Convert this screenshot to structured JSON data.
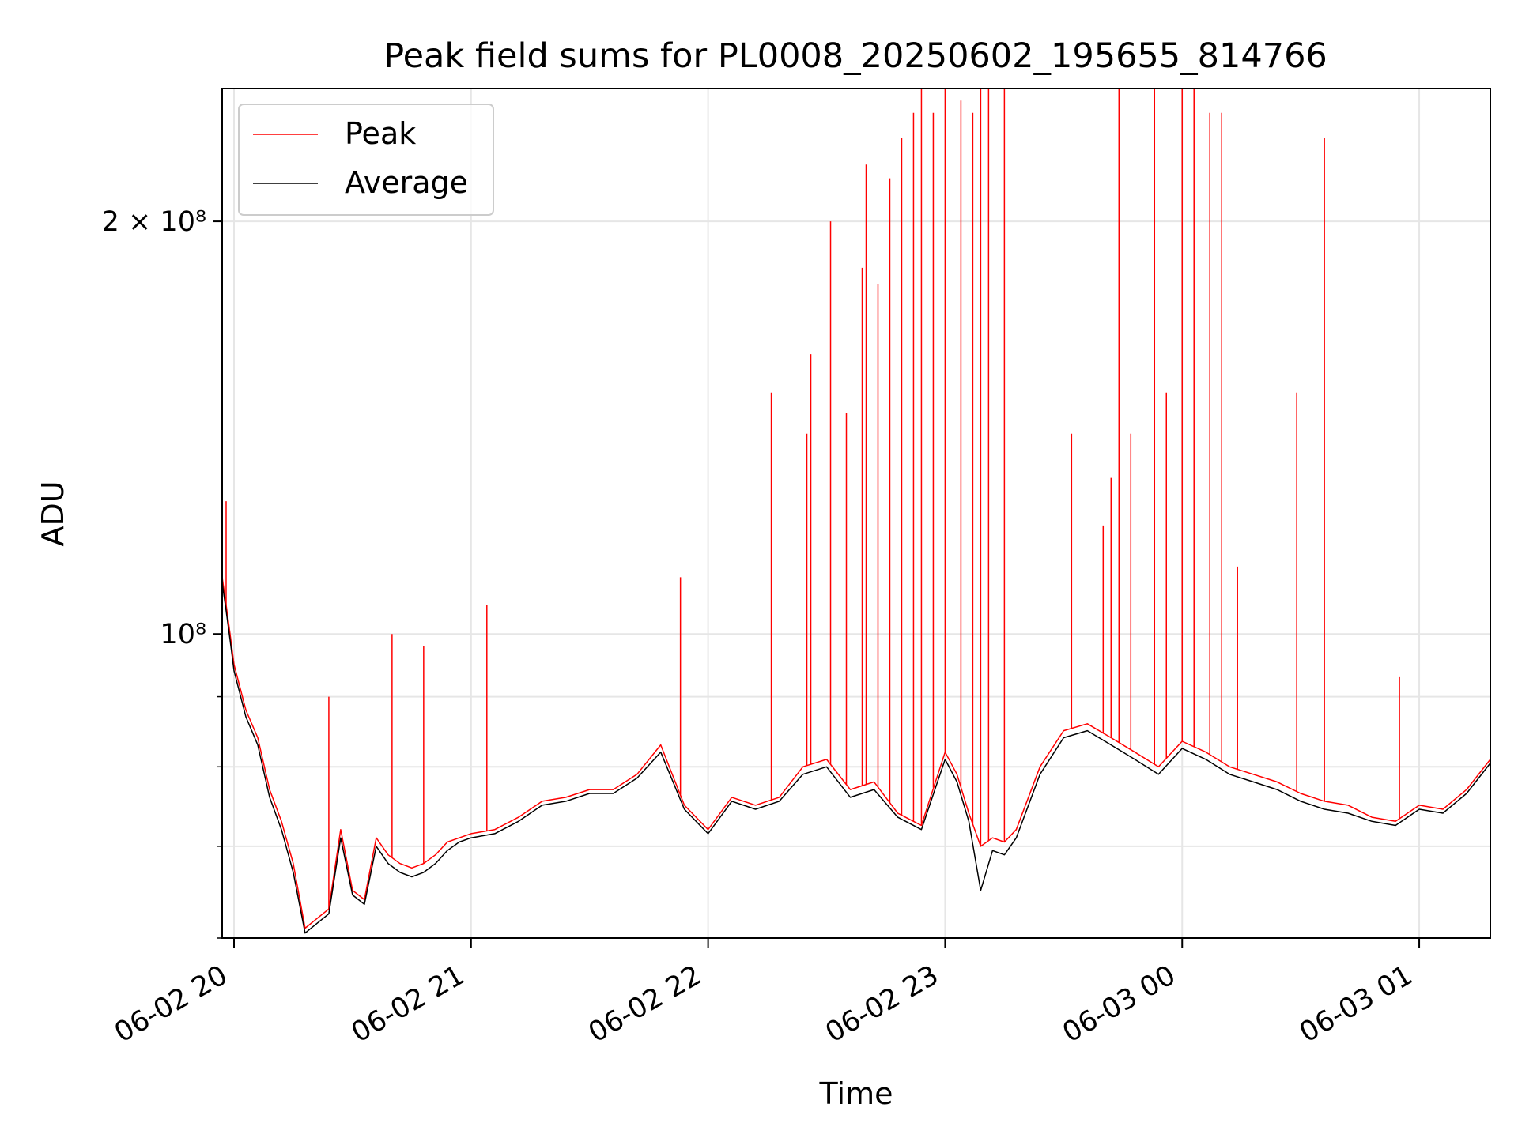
{
  "chart_data": {
    "type": "line",
    "title": "Peak field sums for PL0008_20250602_195655_814766",
    "xlabel": "Time",
    "ylabel": "ADU",
    "yscale": "log",
    "xlim": [
      "2025-06-02 19:57",
      "2025-06-03 01:18"
    ],
    "ylim": [
      60000000,
      250000000
    ],
    "grid": true,
    "legend_position": "top-left",
    "x_ticks": [
      {
        "time": "2025-06-02 20:00",
        "label": "06-02 20"
      },
      {
        "time": "2025-06-02 21:00",
        "label": "06-02 21"
      },
      {
        "time": "2025-06-02 22:00",
        "label": "06-02 22"
      },
      {
        "time": "2025-06-02 23:00",
        "label": "06-02 23"
      },
      {
        "time": "2025-06-03 00:00",
        "label": "06-03 00"
      },
      {
        "time": "2025-06-03 01:00",
        "label": "06-03 01"
      }
    ],
    "y_ticks": [
      {
        "value": 100000000,
        "label": "10⁸"
      },
      {
        "value": 200000000,
        "label": "2 × 10⁸"
      }
    ],
    "y_minor_ticks": [
      60000000,
      70000000,
      80000000,
      90000000
    ],
    "series": [
      {
        "name": "Peak",
        "color": "#ff0000",
        "points": [
          [
            "2025-06-02 19:57",
            110000000
          ],
          [
            "2025-06-02 19:58",
            105000000
          ],
          [
            "2025-06-02 19:59",
            100000000
          ],
          [
            "2025-06-02 20:00",
            95000000
          ],
          [
            "2025-06-02 20:03",
            88000000
          ],
          [
            "2025-06-02 20:06",
            84000000
          ],
          [
            "2025-06-02 20:09",
            77000000
          ],
          [
            "2025-06-02 20:12",
            73000000
          ],
          [
            "2025-06-02 20:15",
            68000000
          ],
          [
            "2025-06-02 20:18",
            61000000
          ],
          [
            "2025-06-02 20:21",
            62000000
          ],
          [
            "2025-06-02 20:24",
            63000000
          ],
          [
            "2025-06-02 20:27",
            72000000
          ],
          [
            "2025-06-02 20:30",
            65000000
          ],
          [
            "2025-06-02 20:33",
            64000000
          ],
          [
            "2025-06-02 20:36",
            71000000
          ],
          [
            "2025-06-02 20:39",
            69000000
          ],
          [
            "2025-06-02 20:42",
            68000000
          ],
          [
            "2025-06-02 20:45",
            67500000
          ],
          [
            "2025-06-02 20:48",
            68000000
          ],
          [
            "2025-06-02 20:51",
            69000000
          ],
          [
            "2025-06-02 20:54",
            70500000
          ],
          [
            "2025-06-02 20:57",
            71000000
          ],
          [
            "2025-06-02 21:00",
            71500000
          ],
          [
            "2025-06-02 21:06",
            72000000
          ],
          [
            "2025-06-02 21:12",
            73500000
          ],
          [
            "2025-06-02 21:18",
            75500000
          ],
          [
            "2025-06-02 21:24",
            76000000
          ],
          [
            "2025-06-02 21:30",
            77000000
          ],
          [
            "2025-06-02 21:36",
            77000000
          ],
          [
            "2025-06-02 21:42",
            79000000
          ],
          [
            "2025-06-02 21:48",
            83000000
          ],
          [
            "2025-06-02 21:54",
            75000000
          ],
          [
            "2025-06-02 22:00",
            72000000
          ],
          [
            "2025-06-02 22:06",
            76000000
          ],
          [
            "2025-06-02 22:12",
            75000000
          ],
          [
            "2025-06-02 22:18",
            76000000
          ],
          [
            "2025-06-02 22:24",
            80000000
          ],
          [
            "2025-06-02 22:30",
            81000000
          ],
          [
            "2025-06-02 22:36",
            77000000
          ],
          [
            "2025-06-02 22:42",
            78000000
          ],
          [
            "2025-06-02 22:48",
            74000000
          ],
          [
            "2025-06-02 22:54",
            72500000
          ],
          [
            "2025-06-02 23:00",
            82000000
          ],
          [
            "2025-06-02 23:03",
            79000000
          ],
          [
            "2025-06-02 23:06",
            74000000
          ],
          [
            "2025-06-02 23:09",
            70000000
          ],
          [
            "2025-06-02 23:12",
            71000000
          ],
          [
            "2025-06-02 23:15",
            70500000
          ],
          [
            "2025-06-02 23:18",
            72000000
          ],
          [
            "2025-06-02 23:24",
            80000000
          ],
          [
            "2025-06-02 23:30",
            85000000
          ],
          [
            "2025-06-02 23:36",
            86000000
          ],
          [
            "2025-06-02 23:42",
            84000000
          ],
          [
            "2025-06-02 23:48",
            82000000
          ],
          [
            "2025-06-02 23:54",
            80000000
          ],
          [
            "2025-06-03 00:00",
            83500000
          ],
          [
            "2025-06-03 00:06",
            82000000
          ],
          [
            "2025-06-03 00:12",
            80000000
          ],
          [
            "2025-06-03 00:18",
            79000000
          ],
          [
            "2025-06-03 00:24",
            78000000
          ],
          [
            "2025-06-03 00:30",
            76500000
          ],
          [
            "2025-06-03 00:36",
            75500000
          ],
          [
            "2025-06-03 00:42",
            75000000
          ],
          [
            "2025-06-03 00:48",
            73500000
          ],
          [
            "2025-06-03 00:54",
            73000000
          ],
          [
            "2025-06-03 01:00",
            75000000
          ],
          [
            "2025-06-03 01:06",
            74500000
          ],
          [
            "2025-06-03 01:12",
            77000000
          ],
          [
            "2025-06-03 01:18",
            81000000
          ]
        ]
      },
      {
        "name": "Average",
        "color": "#000000",
        "points": [
          [
            "2025-06-02 19:57",
            109000000
          ],
          [
            "2025-06-02 19:58",
            104000000
          ],
          [
            "2025-06-02 19:59",
            99000000
          ],
          [
            "2025-06-02 20:00",
            94000000
          ],
          [
            "2025-06-02 20:03",
            87000000
          ],
          [
            "2025-06-02 20:06",
            83000000
          ],
          [
            "2025-06-02 20:09",
            76000000
          ],
          [
            "2025-06-02 20:12",
            72000000
          ],
          [
            "2025-06-02 20:15",
            67000000
          ],
          [
            "2025-06-02 20:18",
            60500000
          ],
          [
            "2025-06-02 20:21",
            61500000
          ],
          [
            "2025-06-02 20:24",
            62500000
          ],
          [
            "2025-06-02 20:27",
            71000000
          ],
          [
            "2025-06-02 20:30",
            64500000
          ],
          [
            "2025-06-02 20:33",
            63500000
          ],
          [
            "2025-06-02 20:36",
            70000000
          ],
          [
            "2025-06-02 20:39",
            68000000
          ],
          [
            "2025-06-02 20:42",
            67000000
          ],
          [
            "2025-06-02 20:45",
            66500000
          ],
          [
            "2025-06-02 20:48",
            67000000
          ],
          [
            "2025-06-02 20:51",
            68000000
          ],
          [
            "2025-06-02 20:54",
            69500000
          ],
          [
            "2025-06-02 20:57",
            70500000
          ],
          [
            "2025-06-02 21:00",
            71000000
          ],
          [
            "2025-06-02 21:06",
            71500000
          ],
          [
            "2025-06-02 21:12",
            73000000
          ],
          [
            "2025-06-02 21:18",
            75000000
          ],
          [
            "2025-06-02 21:24",
            75500000
          ],
          [
            "2025-06-02 21:30",
            76500000
          ],
          [
            "2025-06-02 21:36",
            76500000
          ],
          [
            "2025-06-02 21:42",
            78500000
          ],
          [
            "2025-06-02 21:48",
            82000000
          ],
          [
            "2025-06-02 21:54",
            74500000
          ],
          [
            "2025-06-02 22:00",
            71500000
          ],
          [
            "2025-06-02 22:06",
            75500000
          ],
          [
            "2025-06-02 22:12",
            74500000
          ],
          [
            "2025-06-02 22:18",
            75500000
          ],
          [
            "2025-06-02 22:24",
            79000000
          ],
          [
            "2025-06-02 22:30",
            80000000
          ],
          [
            "2025-06-02 22:36",
            76000000
          ],
          [
            "2025-06-02 22:42",
            77000000
          ],
          [
            "2025-06-02 22:48",
            73500000
          ],
          [
            "2025-06-02 22:54",
            72000000
          ],
          [
            "2025-06-02 23:00",
            81000000
          ],
          [
            "2025-06-02 23:03",
            78000000
          ],
          [
            "2025-06-02 23:06",
            73000000
          ],
          [
            "2025-06-02 23:09",
            65000000
          ],
          [
            "2025-06-02 23:12",
            69500000
          ],
          [
            "2025-06-02 23:15",
            69000000
          ],
          [
            "2025-06-02 23:18",
            71000000
          ],
          [
            "2025-06-02 23:24",
            79000000
          ],
          [
            "2025-06-02 23:30",
            84000000
          ],
          [
            "2025-06-02 23:36",
            85000000
          ],
          [
            "2025-06-02 23:42",
            83000000
          ],
          [
            "2025-06-02 23:48",
            81000000
          ],
          [
            "2025-06-02 23:54",
            79000000
          ],
          [
            "2025-06-03 00:00",
            82500000
          ],
          [
            "2025-06-03 00:06",
            81000000
          ],
          [
            "2025-06-03 00:12",
            79000000
          ],
          [
            "2025-06-03 00:18",
            78000000
          ],
          [
            "2025-06-03 00:24",
            77000000
          ],
          [
            "2025-06-03 00:30",
            75500000
          ],
          [
            "2025-06-03 00:36",
            74500000
          ],
          [
            "2025-06-03 00:42",
            74000000
          ],
          [
            "2025-06-03 00:48",
            73000000
          ],
          [
            "2025-06-03 00:54",
            72500000
          ],
          [
            "2025-06-03 01:00",
            74500000
          ],
          [
            "2025-06-03 01:06",
            74000000
          ],
          [
            "2025-06-03 01:12",
            76500000
          ],
          [
            "2025-06-03 01:18",
            80500000
          ]
        ]
      }
    ],
    "peak_spikes": [
      [
        "2025-06-02 19:58",
        125000000
      ],
      [
        "2025-06-02 20:24",
        90000000
      ],
      [
        "2025-06-02 20:40",
        100000000
      ],
      [
        "2025-06-02 20:48",
        98000000
      ],
      [
        "2025-06-02 21:04",
        105000000
      ],
      [
        "2025-06-02 21:53",
        110000000
      ],
      [
        "2025-06-02 22:16",
        150000000
      ],
      [
        "2025-06-02 22:25",
        140000000
      ],
      [
        "2025-06-02 22:26",
        160000000
      ],
      [
        "2025-06-02 22:31",
        200000000
      ],
      [
        "2025-06-02 22:35",
        145000000
      ],
      [
        "2025-06-02 22:39",
        185000000
      ],
      [
        "2025-06-02 22:40",
        220000000
      ],
      [
        "2025-06-02 22:43",
        180000000
      ],
      [
        "2025-06-02 22:46",
        215000000
      ],
      [
        "2025-06-02 22:49",
        230000000
      ],
      [
        "2025-06-02 22:52",
        240000000
      ],
      [
        "2025-06-02 22:54",
        250000000
      ],
      [
        "2025-06-02 22:57",
        240000000
      ],
      [
        "2025-06-02 23:00",
        250000000
      ],
      [
        "2025-06-02 23:04",
        245000000
      ],
      [
        "2025-06-02 23:07",
        240000000
      ],
      [
        "2025-06-02 23:09",
        250000000
      ],
      [
        "2025-06-02 23:11",
        250000000
      ],
      [
        "2025-06-02 23:15",
        250000000
      ],
      [
        "2025-06-02 23:32",
        140000000
      ],
      [
        "2025-06-02 23:40",
        120000000
      ],
      [
        "2025-06-02 23:42",
        130000000
      ],
      [
        "2025-06-02 23:44",
        250000000
      ],
      [
        "2025-06-02 23:47",
        140000000
      ],
      [
        "2025-06-02 23:53",
        250000000
      ],
      [
        "2025-06-02 23:56",
        150000000
      ],
      [
        "2025-06-03 00:00",
        250000000
      ],
      [
        "2025-06-03 00:03",
        250000000
      ],
      [
        "2025-06-03 00:07",
        240000000
      ],
      [
        "2025-06-03 00:10",
        240000000
      ],
      [
        "2025-06-03 00:14",
        112000000
      ],
      [
        "2025-06-03 00:29",
        150000000
      ],
      [
        "2025-06-03 00:36",
        230000000
      ],
      [
        "2025-06-03 00:55",
        93000000
      ]
    ]
  }
}
